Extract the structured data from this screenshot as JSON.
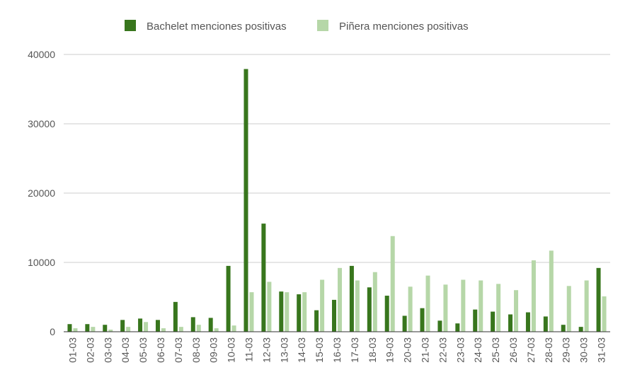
{
  "chart_data": {
    "type": "bar",
    "title": "",
    "xlabel": "",
    "ylabel": "",
    "ylim": [
      0,
      40000
    ],
    "yticks": [
      0,
      10000,
      20000,
      30000,
      40000
    ],
    "grid": true,
    "legend_position": "top-center",
    "categories": [
      "01-03",
      "02-03",
      "03-03",
      "04-03",
      "05-03",
      "06-03",
      "07-03",
      "08-03",
      "09-03",
      "10-03",
      "11-03",
      "12-03",
      "13-03",
      "14-03",
      "15-03",
      "16-03",
      "17-03",
      "18-03",
      "19-03",
      "20-03",
      "21-03",
      "22-03",
      "23-03",
      "24-03",
      "25-03",
      "26-03",
      "27-03",
      "28-03",
      "29-03",
      "30-03",
      "31-03"
    ],
    "series": [
      {
        "name": "Bachelet menciones positivas",
        "color": "#38761d",
        "values": [
          1100,
          1100,
          1000,
          1700,
          1900,
          1700,
          4300,
          2100,
          2000,
          9500,
          37900,
          15600,
          5800,
          5400,
          3100,
          4600,
          9500,
          6400,
          5200,
          2300,
          3400,
          1600,
          1200,
          3200,
          2900,
          2500,
          2800,
          2200,
          1000,
          700,
          9200
        ]
      },
      {
        "name": "Piñera menciones positivas",
        "color": "#b6d7a8",
        "values": [
          500,
          700,
          300,
          700,
          1400,
          500,
          700,
          1000,
          500,
          900,
          5700,
          7200,
          5700,
          5700,
          7500,
          9200,
          7400,
          8600,
          13800,
          6500,
          8100,
          6800,
          7500,
          7400,
          6900,
          6000,
          10300,
          11700,
          6600,
          7400,
          5100
        ]
      }
    ]
  }
}
